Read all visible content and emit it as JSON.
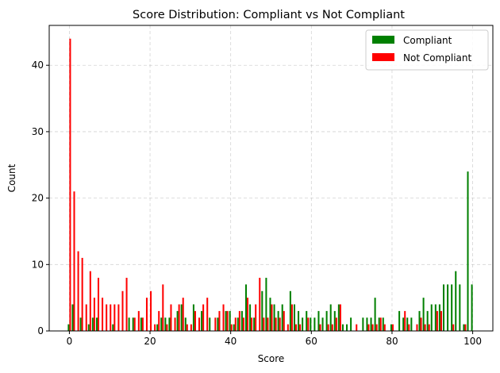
{
  "chart_data": {
    "type": "bar",
    "title": "Score Distribution: Compliant vs Not Compliant",
    "xlabel": "Score",
    "ylabel": "Count",
    "xlim": [
      -5,
      105
    ],
    "ylim": [
      0,
      46
    ],
    "xticks": [
      0,
      20,
      40,
      60,
      80,
      100
    ],
    "yticks": [
      0,
      10,
      20,
      30,
      40
    ],
    "grid": true,
    "legend_position": "upper-right",
    "series": [
      {
        "name": "Compliant",
        "color": "#008000",
        "x": [
          0,
          1,
          3,
          5,
          6,
          7,
          11,
          15,
          16,
          18,
          22,
          23,
          24,
          25,
          27,
          28,
          29,
          31,
          33,
          35,
          37,
          39,
          40,
          41,
          42,
          43,
          44,
          45,
          46,
          48,
          49,
          50,
          51,
          52,
          53,
          55,
          56,
          57,
          58,
          59,
          60,
          61,
          62,
          63,
          64,
          65,
          66,
          67,
          68,
          69,
          70,
          73,
          74,
          75,
          76,
          77,
          78,
          80,
          82,
          83,
          84,
          85,
          87,
          88,
          89,
          90,
          91,
          92,
          93,
          94,
          95,
          96,
          97,
          98,
          99,
          100
        ],
        "values": [
          1,
          4,
          2,
          1,
          2,
          2,
          1,
          2,
          2,
          2,
          1,
          2,
          2,
          2,
          3,
          4,
          2,
          4,
          3,
          2,
          2,
          3,
          3,
          1,
          2,
          3,
          7,
          4,
          2,
          6,
          8,
          5,
          4,
          3,
          4,
          6,
          4,
          3,
          2,
          3,
          2,
          2,
          3,
          2,
          3,
          4,
          3,
          4,
          1,
          1,
          2,
          2,
          2,
          2,
          5,
          2,
          2,
          1,
          3,
          2,
          2,
          2,
          3,
          5,
          3,
          4,
          4,
          4,
          7,
          7,
          7,
          9,
          7,
          1,
          24,
          7
        ]
      },
      {
        "name": "Not Compliant",
        "color": "#ff0000",
        "x": [
          0,
          1,
          2,
          3,
          4,
          5,
          6,
          7,
          8,
          9,
          10,
          11,
          12,
          13,
          14,
          16,
          17,
          18,
          19,
          20,
          21,
          22,
          23,
          24,
          25,
          26,
          27,
          28,
          29,
          30,
          31,
          32,
          33,
          34,
          36,
          37,
          38,
          39,
          40,
          41,
          42,
          43,
          44,
          45,
          46,
          47,
          48,
          49,
          50,
          51,
          52,
          53,
          54,
          55,
          56,
          57,
          59,
          62,
          64,
          65,
          66,
          67,
          71,
          74,
          75,
          76,
          77,
          78,
          80,
          83,
          84,
          86,
          87,
          88,
          89,
          91,
          92,
          95,
          98
        ],
        "values": [
          44,
          21,
          12,
          11,
          4,
          9,
          5,
          8,
          5,
          4,
          4,
          4,
          4,
          6,
          8,
          2,
          3,
          2,
          5,
          6,
          1,
          3,
          7,
          1,
          4,
          2,
          4,
          5,
          1,
          1,
          3,
          2,
          4,
          5,
          2,
          3,
          4,
          3,
          1,
          2,
          3,
          2,
          5,
          2,
          4,
          8,
          2,
          2,
          4,
          2,
          2,
          3,
          1,
          4,
          1,
          1,
          2,
          1,
          1,
          1,
          2,
          4,
          1,
          1,
          1,
          1,
          2,
          1,
          1,
          3,
          1,
          1,
          2,
          1,
          1,
          3,
          3,
          1,
          1
        ]
      }
    ]
  }
}
